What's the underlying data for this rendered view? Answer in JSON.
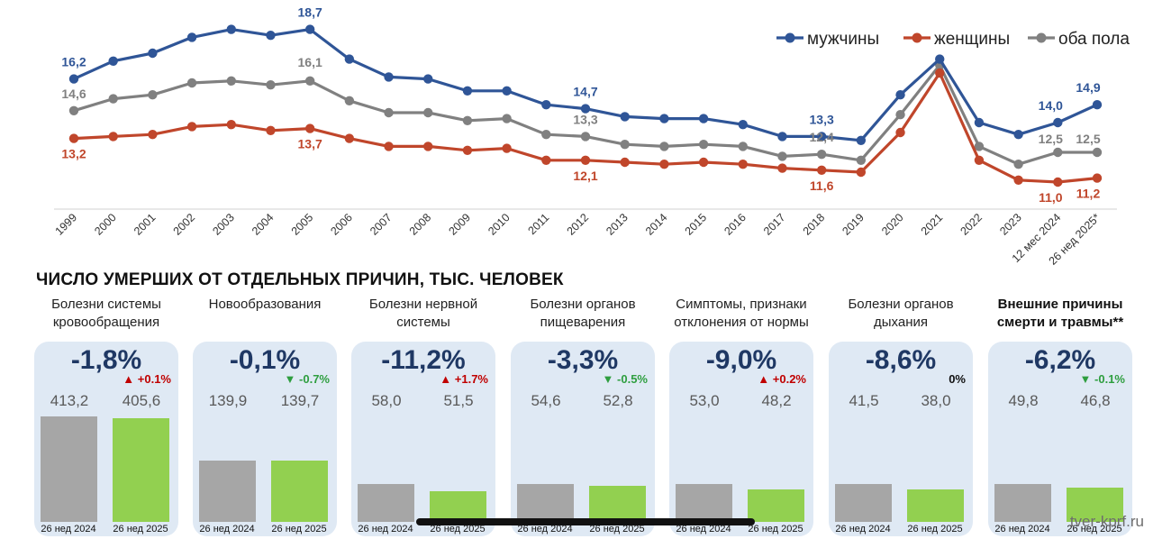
{
  "chart_data": [
    {
      "type": "line",
      "title": "",
      "xlabel": "",
      "ylabel": "",
      "categories": [
        "1999",
        "2000",
        "2001",
        "2002",
        "2003",
        "2004",
        "2005",
        "2006",
        "2007",
        "2008",
        "2009",
        "2010",
        "2011",
        "2012",
        "2013",
        "2014",
        "2015",
        "2016",
        "2017",
        "2018",
        "2019",
        "2020",
        "2021",
        "2022",
        "2023",
        "12 мес 2024",
        "26 нед 2025*"
      ],
      "ylim": [
        10,
        20
      ],
      "grid": false,
      "legend": "top-right",
      "series": [
        {
          "name": "мужчины",
          "color": "#2f5597",
          "values": [
            16.2,
            17.1,
            17.5,
            18.3,
            18.7,
            18.4,
            18.7,
            17.2,
            16.3,
            16.2,
            15.6,
            15.6,
            14.9,
            14.7,
            14.3,
            14.2,
            14.2,
            13.9,
            13.3,
            13.3,
            13.1,
            15.4,
            17.2,
            14.0,
            13.4,
            14.0,
            14.9
          ],
          "labels": {
            "0": "16,2",
            "6": "18,7",
            "13": "14,7",
            "19": "13,3",
            "25": "14,0",
            "26": "14,9"
          }
        },
        {
          "name": "женщины",
          "color": "#c0462b",
          "values": [
            13.2,
            13.3,
            13.4,
            13.8,
            13.9,
            13.6,
            13.7,
            13.2,
            12.8,
            12.8,
            12.6,
            12.7,
            12.1,
            12.1,
            12.0,
            11.9,
            12.0,
            11.9,
            11.7,
            11.6,
            11.5,
            13.5,
            16.5,
            12.1,
            11.1,
            11.0,
            11.2
          ],
          "labels": {
            "0": "13,2",
            "6": "13,7",
            "13": "12,1",
            "19": "11,6",
            "25": "11,0",
            "26": "11,2"
          }
        },
        {
          "name": "оба пола",
          "color": "#808080",
          "values": [
            14.6,
            15.2,
            15.4,
            16.0,
            16.1,
            15.9,
            16.1,
            15.1,
            14.5,
            14.5,
            14.1,
            14.2,
            13.4,
            13.3,
            12.9,
            12.8,
            12.9,
            12.8,
            12.3,
            12.4,
            12.1,
            14.4,
            16.9,
            12.8,
            11.9,
            12.5,
            12.5
          ],
          "labels": {
            "0": "14,6",
            "6": "16,1",
            "13": "13,3",
            "19": "12,4",
            "25": "12,5",
            "26": "12,5"
          }
        }
      ]
    },
    {
      "type": "bar",
      "title": "ЧИСЛО УМЕРШИХ ОТ ОТДЕЛЬНЫХ ПРИЧИН, ТЫС. ЧЕЛОВЕК",
      "categories": [
        "26 нед 2024",
        "26 нед 2025"
      ],
      "ylim": [
        0,
        413.2
      ],
      "groups": [
        {
          "name": "Болезни системы кровообращения",
          "values": [
            413.2,
            405.6
          ],
          "value_labels": [
            "413,2",
            "405,6"
          ],
          "change": "-1,8%",
          "delta": "+0.1%",
          "delta_dir": "up",
          "bold": false
        },
        {
          "name": "Новообразования",
          "values": [
            139.9,
            139.7
          ],
          "value_labels": [
            "139,9",
            "139,7"
          ],
          "change": "-0,1%",
          "delta": "-0.7%",
          "delta_dir": "down",
          "bold": false
        },
        {
          "name": "Болезни нервной системы",
          "values": [
            58.0,
            51.5
          ],
          "value_labels": [
            "58,0",
            "51,5"
          ],
          "change": "-11,2%",
          "delta": "+1.7%",
          "delta_dir": "up",
          "bold": false
        },
        {
          "name": "Болезни органов пищеварения",
          "values": [
            54.6,
            52.8
          ],
          "value_labels": [
            "54,6",
            "52,8"
          ],
          "change": "-3,3%",
          "delta": "-0.5%",
          "delta_dir": "down",
          "bold": false
        },
        {
          "name": "Симптомы, признаки отклонения от нормы",
          "values": [
            53.0,
            48.2
          ],
          "value_labels": [
            "53,0",
            "48,2"
          ],
          "change": "-9,0%",
          "delta": "+0.2%",
          "delta_dir": "up",
          "bold": false
        },
        {
          "name": "Болезни органов дыхания",
          "values": [
            41.5,
            38.0
          ],
          "value_labels": [
            "41,5",
            "38,0"
          ],
          "change": "-8,6%",
          "delta": "0%",
          "delta_dir": "neutral",
          "bold": false
        },
        {
          "name": "Внешние причины смерти и травмы**",
          "values": [
            49.8,
            46.8
          ],
          "value_labels": [
            "49,8",
            "46,8"
          ],
          "change": "-6,2%",
          "delta": "-0.1%",
          "delta_dir": "down",
          "bold": true
        }
      ]
    }
  ],
  "watermark": "tver-kprf.ru",
  "colors": {
    "card_bg": "#dfe9f4",
    "bar_2024": "#a6a6a6",
    "bar_2025": "#92d050",
    "pct_text": "#1f3864",
    "delta_up": "#c00000",
    "delta_down": "#2e9e3f"
  }
}
